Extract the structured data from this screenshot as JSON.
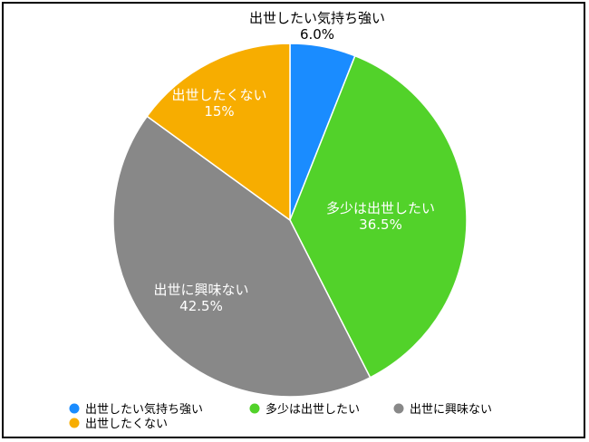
{
  "chart_data": {
    "type": "pie",
    "title": "",
    "slices": [
      {
        "label": "出世したい気持ち強い",
        "value": 6.0,
        "display": "6.0%",
        "color": "#1a8cff"
      },
      {
        "label": "多少は出世したい",
        "value": 36.5,
        "display": "36.5%",
        "color": "#52d22a"
      },
      {
        "label": "出世に興味ない",
        "value": 42.5,
        "display": "42.5%",
        "color": "#888888"
      },
      {
        "label": "出世したくない",
        "value": 15,
        "display": "15%",
        "color": "#f7ad00"
      }
    ],
    "start": "top",
    "direction": "clockwise",
    "legend_position": "bottom-left"
  }
}
